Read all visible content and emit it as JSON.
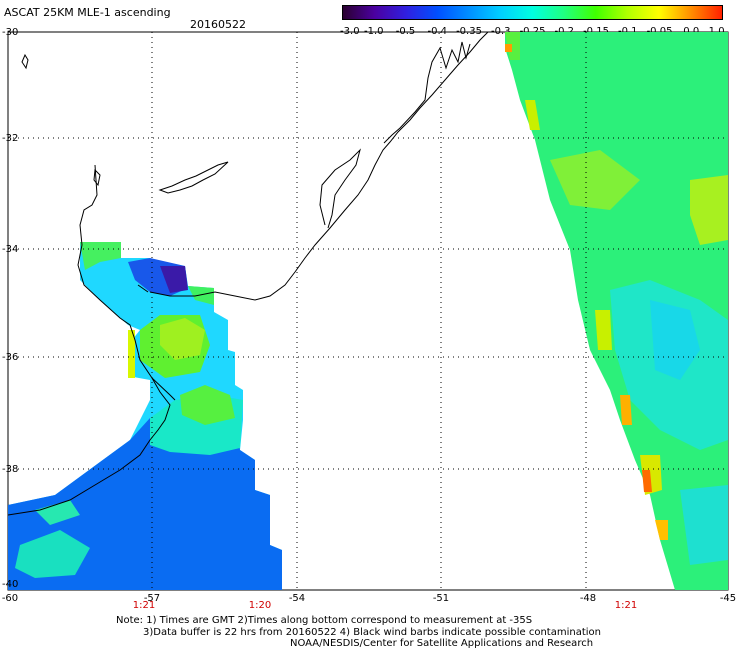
{
  "header": {
    "title": "ASCAT 25KM MLE-1 ascending",
    "date": "20160522"
  },
  "colorbar": {
    "ticks": [
      "-3.0",
      "-1.0",
      "-0.5",
      "-0.4",
      "-0.35",
      "-0.3",
      "-0.25",
      "-0.2",
      "-0.15",
      "-0.1",
      "-0.05",
      "0.0",
      "1.0"
    ],
    "colors": [
      "#2a0030",
      "#4b00a0",
      "#3020e0",
      "#0050ff",
      "#0090ff",
      "#00d0ff",
      "#00ffe0",
      "#20ff80",
      "#40ff00",
      "#b0ff00",
      "#ffff00",
      "#ff9000",
      "#ff2000"
    ]
  },
  "axes": {
    "lat_labels": [
      "-30",
      "-32",
      "-34",
      "-36",
      "-38",
      "-40"
    ],
    "lon_labels": [
      "-60",
      "-57",
      "-54",
      "-51",
      "-48",
      "-45"
    ]
  },
  "times": [
    "1:21",
    "1:20",
    "1:21"
  ],
  "notes": {
    "line1": "Note: 1) Times are GMT 2)Times along bottom correspond to measurement at -35S",
    "line2": "3)Data buffer is 22 hrs from 20160522 4) Black wind barbs indicate possible contamination",
    "line3": "NOAA/NESDIS/Center for Satellite Applications and Research"
  }
}
